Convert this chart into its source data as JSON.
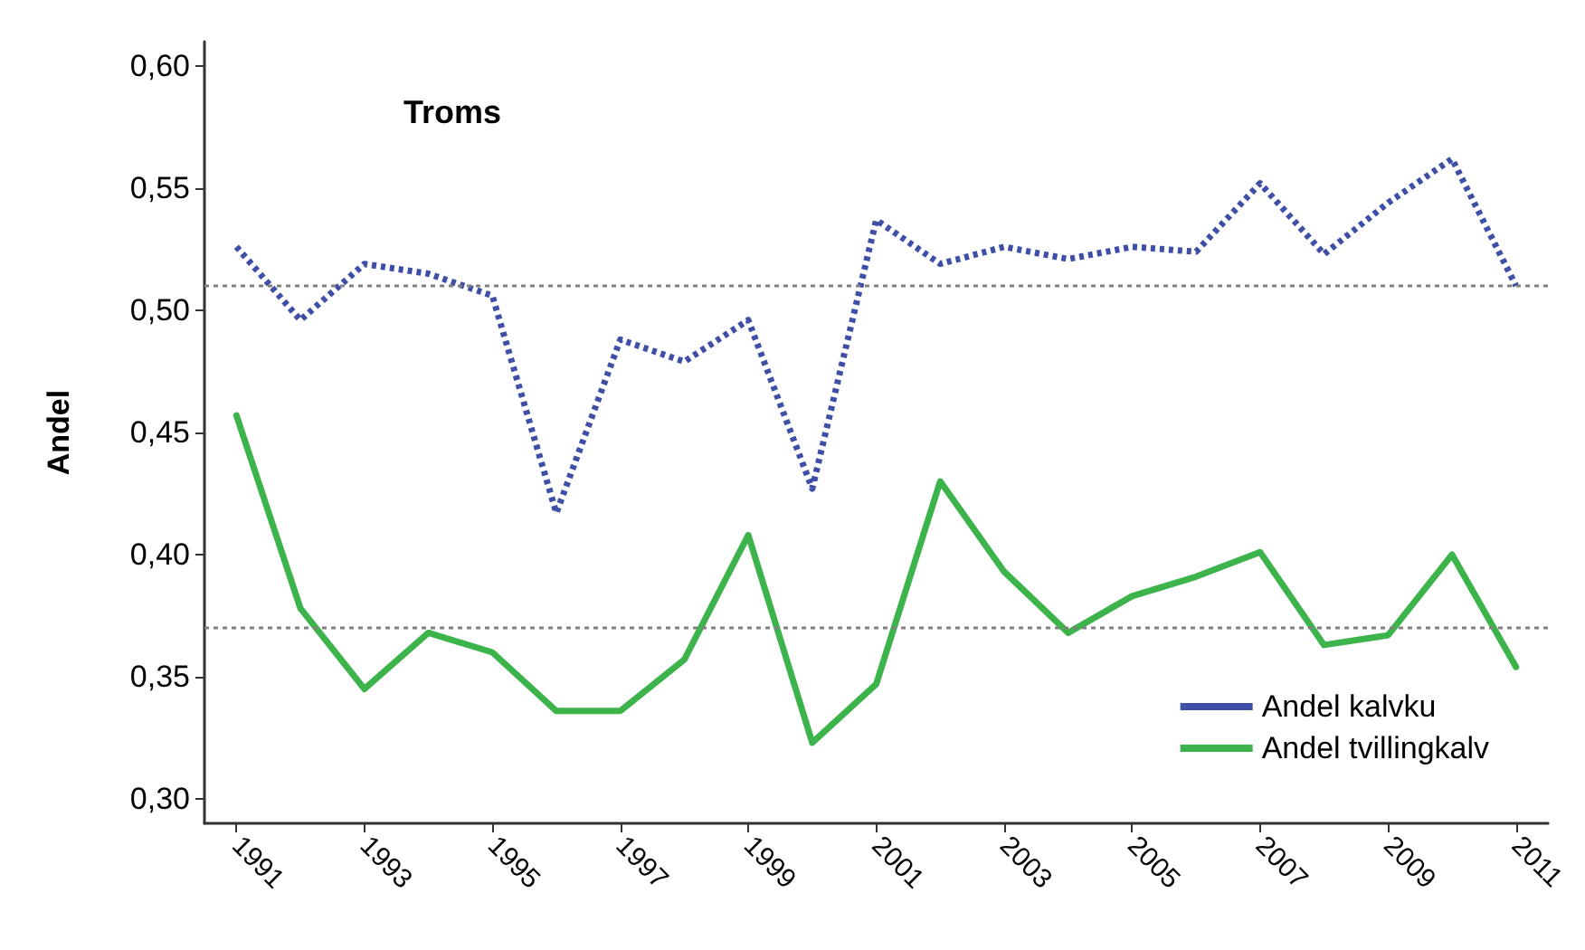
{
  "chart_data": {
    "type": "line",
    "title": "Troms",
    "ylabel": "Andel",
    "categories": [
      "1991",
      null,
      "1993",
      null,
      "1995",
      null,
      "1997",
      null,
      "1999",
      null,
      "2001",
      null,
      "2003",
      null,
      "2005",
      null,
      "2007",
      null,
      "2009",
      null,
      "2011"
    ],
    "series": [
      {
        "name": "Andel kalvku",
        "color": "#3f4fa8",
        "line_style": "dotted",
        "values": [
          0.526,
          0.496,
          0.519,
          0.515,
          0.506,
          0.417,
          0.488,
          0.479,
          0.496,
          0.427,
          0.537,
          0.519,
          0.526,
          0.521,
          0.526,
          0.524,
          0.552,
          0.523,
          0.544,
          0.562,
          0.51
        ]
      },
      {
        "name": "Andel tvillingkalv",
        "color": "#3cb44b",
        "line_style": "solid",
        "values": [
          0.457,
          0.378,
          0.345,
          0.368,
          0.36,
          0.336,
          0.336,
          0.357,
          0.408,
          0.323,
          0.347,
          0.43,
          0.393,
          0.368,
          0.383,
          0.391,
          0.401,
          0.363,
          0.367,
          0.4,
          0.354
        ]
      }
    ],
    "ylim": [
      0.29,
      0.61
    ],
    "yticks": [
      {
        "value": 0.3,
        "label": "0,30"
      },
      {
        "value": 0.35,
        "label": "0,35"
      },
      {
        "value": 0.4,
        "label": "0,40"
      },
      {
        "value": 0.45,
        "label": "0,45"
      },
      {
        "value": 0.5,
        "label": "0,50"
      },
      {
        "value": 0.55,
        "label": "0,55"
      },
      {
        "value": 0.6,
        "label": "0,60"
      }
    ],
    "ref_lines": [
      {
        "axis": "y",
        "value": 0.51,
        "color": "#808080",
        "line_style": "dotted"
      },
      {
        "axis": "y",
        "value": 0.37,
        "color": "#808080",
        "line_style": "dotted"
      }
    ],
    "legend": "bottom right",
    "marker": "none",
    "grid": false
  }
}
